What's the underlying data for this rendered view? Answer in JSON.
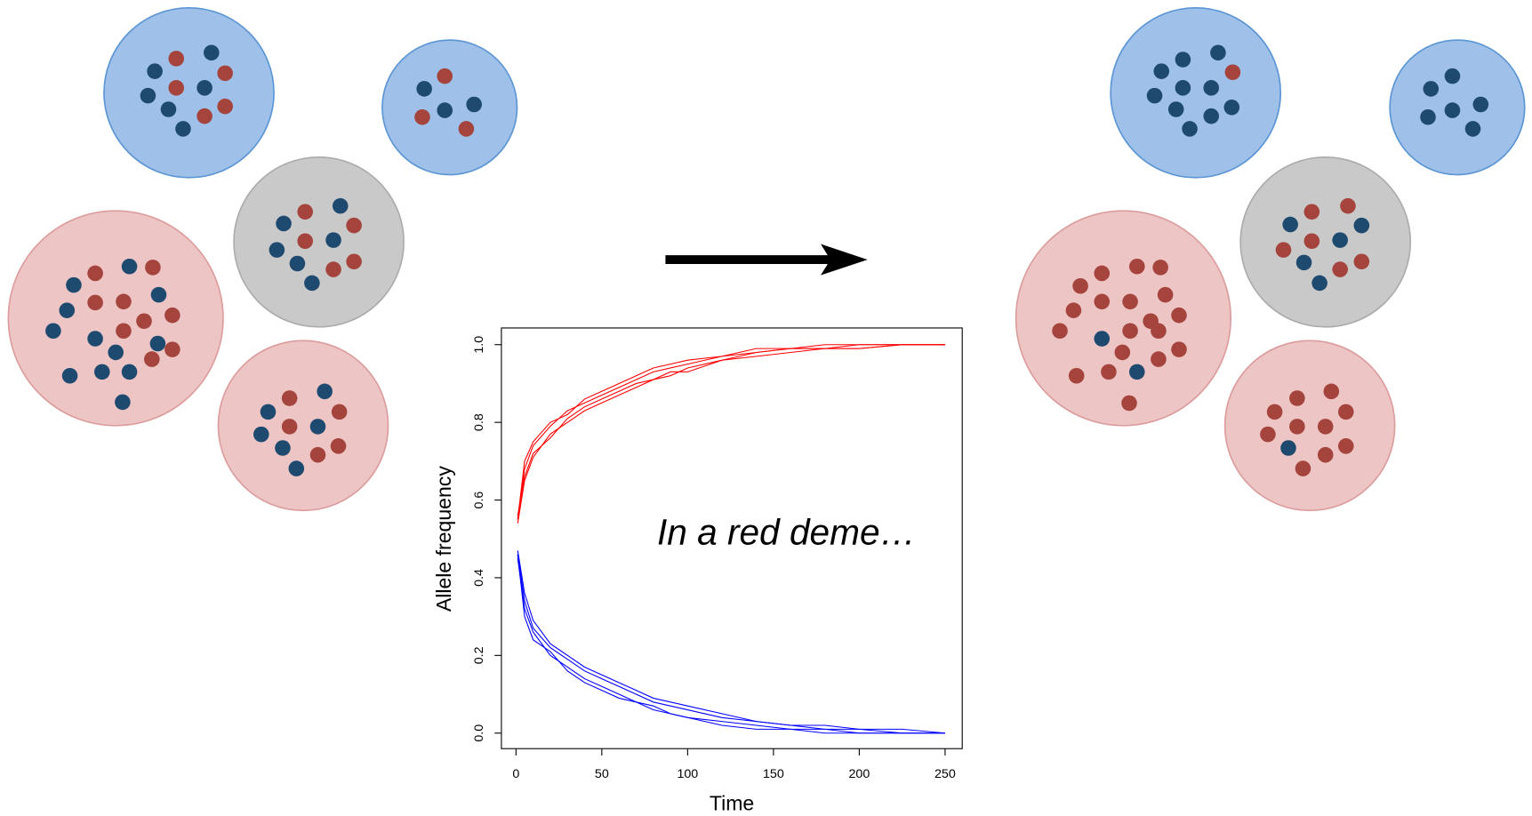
{
  "chart_data": {
    "type": "line",
    "annotation": "In a red deme…",
    "x_label": "Time",
    "y_label": "Allele frequency",
    "x": [
      1,
      5,
      10,
      20,
      30,
      40,
      50,
      60,
      70,
      80,
      90,
      100,
      120,
      140,
      160,
      180,
      200,
      225,
      250
    ],
    "series": [
      {
        "color": "#ff0000",
        "values": [
          0.55,
          0.68,
          0.74,
          0.79,
          0.83,
          0.85,
          0.87,
          0.89,
          0.91,
          0.93,
          0.94,
          0.95,
          0.97,
          0.98,
          0.99,
          0.99,
          1.0,
          1.0,
          1.0
        ]
      },
      {
        "color": "#ff0000",
        "values": [
          0.54,
          0.65,
          0.71,
          0.77,
          0.8,
          0.83,
          0.85,
          0.87,
          0.89,
          0.91,
          0.92,
          0.94,
          0.96,
          0.97,
          0.98,
          0.99,
          0.99,
          1.0,
          1.0
        ]
      },
      {
        "color": "#ff0000",
        "values": [
          0.56,
          0.66,
          0.72,
          0.76,
          0.81,
          0.84,
          0.86,
          0.88,
          0.9,
          0.91,
          0.93,
          0.93,
          0.96,
          0.98,
          0.99,
          0.99,
          0.99,
          1.0,
          1.0
        ]
      },
      {
        "color": "#ff0000",
        "values": [
          0.55,
          0.7,
          0.75,
          0.8,
          0.82,
          0.86,
          0.88,
          0.9,
          0.92,
          0.94,
          0.95,
          0.96,
          0.97,
          0.99,
          0.99,
          1.0,
          1.0,
          1.0,
          1.0
        ]
      },
      {
        "color": "#0000ff",
        "values": [
          0.46,
          0.34,
          0.27,
          0.22,
          0.19,
          0.16,
          0.14,
          0.12,
          0.1,
          0.08,
          0.07,
          0.06,
          0.04,
          0.03,
          0.02,
          0.01,
          0.01,
          0.0,
          0.0
        ]
      },
      {
        "color": "#0000ff",
        "values": [
          0.45,
          0.32,
          0.26,
          0.2,
          0.17,
          0.14,
          0.12,
          0.1,
          0.08,
          0.07,
          0.05,
          0.04,
          0.02,
          0.01,
          0.01,
          0.0,
          0.0,
          0.0,
          0.0
        ]
      },
      {
        "color": "#0000ff",
        "values": [
          0.47,
          0.36,
          0.29,
          0.23,
          0.2,
          0.17,
          0.15,
          0.13,
          0.11,
          0.09,
          0.08,
          0.07,
          0.05,
          0.03,
          0.02,
          0.02,
          0.01,
          0.01,
          0.0
        ]
      },
      {
        "color": "#0000ff",
        "values": [
          0.46,
          0.3,
          0.24,
          0.21,
          0.16,
          0.13,
          0.11,
          0.09,
          0.08,
          0.06,
          0.05,
          0.04,
          0.03,
          0.02,
          0.01,
          0.01,
          0.0,
          0.0,
          0.0
        ]
      }
    ],
    "xlim": [
      -8.5,
      260
    ],
    "ylim": [
      -0.04,
      1.043
    ],
    "xticks": [
      0,
      50,
      100,
      150,
      200,
      250
    ],
    "yticks": [
      {
        "value": 0,
        "label": "0.0"
      },
      0.2,
      0.4,
      0.6,
      0.8,
      {
        "value": 1,
        "label": "1.0"
      }
    ]
  }
}
